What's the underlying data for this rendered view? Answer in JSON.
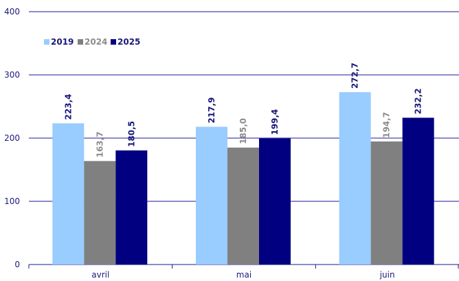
{
  "chart_data": {
    "type": "bar",
    "categories": [
      "avril",
      "mai",
      "juin"
    ],
    "series": [
      {
        "name": "2019",
        "values": [
          223.4,
          217.9,
          272.7
        ],
        "labels": [
          "223,4",
          "217,9",
          "272,7"
        ],
        "color": "#99ccff",
        "label_color": "#1a1a7a"
      },
      {
        "name": "2024",
        "values": [
          163.7,
          185.0,
          194.7
        ],
        "labels": [
          "163,7",
          "185,0",
          "194,7"
        ],
        "color": "#808080",
        "label_color": "#8c8c8c"
      },
      {
        "name": "2025",
        "values": [
          180.5,
          199.4,
          232.2
        ],
        "labels": [
          "180,5",
          "199,4",
          "232,2"
        ],
        "color": "#000080",
        "label_color": "#1a1a7a"
      }
    ],
    "ylim": [
      0,
      400
    ],
    "yticks": [
      "0",
      "100",
      "200",
      "300",
      "400"
    ],
    "ytick_values": [
      0,
      100,
      200,
      300,
      400
    ],
    "grid": true,
    "legend_position": "top-left",
    "gridline_color": "#1a1a9a",
    "axis_text_color": "#1a1a7a"
  }
}
